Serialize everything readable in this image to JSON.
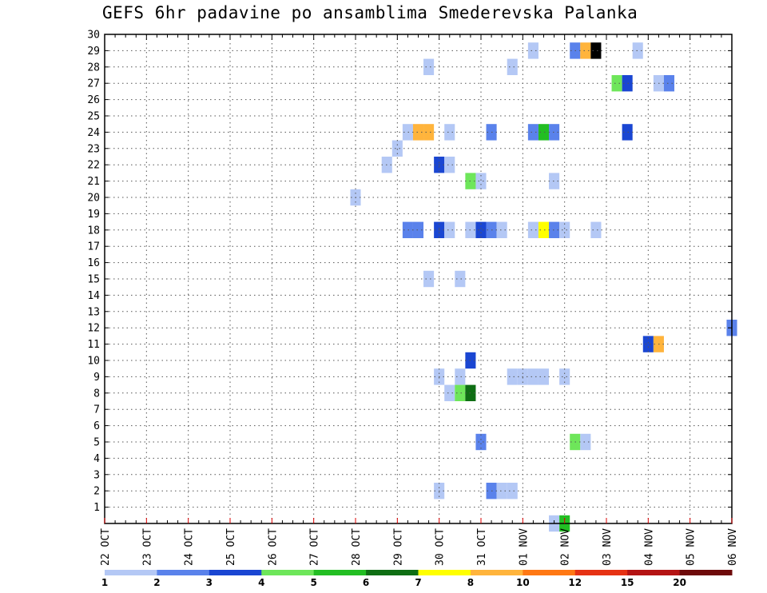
{
  "chart_data": {
    "type": "heatmap",
    "title": "GEFS 6hr padavine po ansamblima Smederevska Palanka",
    "x_tick_labels": [
      "22 OCT",
      "23 OCT",
      "24 OCT",
      "25 OCT",
      "26 OCT",
      "27 OCT",
      "28 OCT",
      "29 OCT",
      "30 OCT",
      "31 OCT",
      "01 NOV",
      "02 NOV",
      "03 NOV",
      "04 NOV",
      "05 NOV",
      "06 NOV"
    ],
    "y_tick_labels": [
      "1",
      "2",
      "3",
      "4",
      "5",
      "6",
      "7",
      "8",
      "9",
      "10",
      "11",
      "12",
      "13",
      "14",
      "15",
      "16",
      "17",
      "18",
      "19",
      "20",
      "21",
      "22",
      "23",
      "24",
      "25",
      "26",
      "27",
      "28",
      "29",
      "30"
    ],
    "x_range_days": [
      0,
      15
    ],
    "y_range_members": [
      0,
      30
    ],
    "x_step_days": 0.25,
    "grid": true,
    "colorbar": {
      "colors": [
        "#b4c8f5",
        "#5a82eb",
        "#1a46d2",
        "#6ee65a",
        "#23be23",
        "#0f6e14",
        "#ffff00",
        "#ffb43c",
        "#ff7814",
        "#e63214",
        "#b41414",
        "#6e0a0a"
      ],
      "labels": [
        "1",
        "2",
        "3",
        "4",
        "5",
        "6",
        "7",
        "8",
        "10",
        "12",
        "15",
        "20"
      ]
    },
    "cells": [
      {
        "d": 10.25,
        "m": 29,
        "v": 1
      },
      {
        "d": 11.25,
        "m": 29,
        "v": 2
      },
      {
        "d": 11.5,
        "m": 29,
        "v": 8
      },
      {
        "d": 11.75,
        "m": 29,
        "v": 15
      },
      {
        "d": 12.75,
        "m": 29,
        "v": 1
      },
      {
        "d": 7.75,
        "m": 28,
        "v": 1
      },
      {
        "d": 9.75,
        "m": 28,
        "v": 1
      },
      {
        "d": 12.25,
        "m": 27,
        "v": 4
      },
      {
        "d": 12.5,
        "m": 27,
        "v": 3
      },
      {
        "d": 13.25,
        "m": 27,
        "v": 1
      },
      {
        "d": 13.5,
        "m": 27,
        "v": 2
      },
      {
        "d": 7.25,
        "m": 24,
        "v": 1
      },
      {
        "d": 7.5,
        "m": 24,
        "v": 8
      },
      {
        "d": 7.75,
        "m": 24,
        "v": 8
      },
      {
        "d": 8.25,
        "m": 24,
        "v": 1
      },
      {
        "d": 9.25,
        "m": 24,
        "v": 2
      },
      {
        "d": 10.25,
        "m": 24,
        "v": 2
      },
      {
        "d": 10.5,
        "m": 24,
        "v": 5
      },
      {
        "d": 10.75,
        "m": 24,
        "v": 2
      },
      {
        "d": 12.5,
        "m": 24,
        "v": 3
      },
      {
        "d": 7.0,
        "m": 23,
        "v": 1
      },
      {
        "d": 6.75,
        "m": 22,
        "v": 1
      },
      {
        "d": 8.0,
        "m": 22,
        "v": 3
      },
      {
        "d": 8.25,
        "m": 22,
        "v": 1
      },
      {
        "d": 8.75,
        "m": 21,
        "v": 4
      },
      {
        "d": 9.0,
        "m": 21,
        "v": 1
      },
      {
        "d": 10.75,
        "m": 21,
        "v": 1
      },
      {
        "d": 6.0,
        "m": 20,
        "v": 1
      },
      {
        "d": 7.25,
        "m": 18,
        "v": 2
      },
      {
        "d": 7.5,
        "m": 18,
        "v": 2
      },
      {
        "d": 8.0,
        "m": 18,
        "v": 3
      },
      {
        "d": 8.25,
        "m": 18,
        "v": 1
      },
      {
        "d": 8.75,
        "m": 18,
        "v": 1
      },
      {
        "d": 9.0,
        "m": 18,
        "v": 3
      },
      {
        "d": 9.25,
        "m": 18,
        "v": 2
      },
      {
        "d": 9.5,
        "m": 18,
        "v": 1
      },
      {
        "d": 10.25,
        "m": 18,
        "v": 1
      },
      {
        "d": 10.5,
        "m": 18,
        "v": 7
      },
      {
        "d": 10.75,
        "m": 18,
        "v": 2
      },
      {
        "d": 11.0,
        "m": 18,
        "v": 1
      },
      {
        "d": 11.75,
        "m": 18,
        "v": 1
      },
      {
        "d": 7.75,
        "m": 15,
        "v": 1
      },
      {
        "d": 8.5,
        "m": 15,
        "v": 1
      },
      {
        "d": 15.0,
        "m": 12,
        "v": 2
      },
      {
        "d": 13.0,
        "m": 11,
        "v": 3
      },
      {
        "d": 13.25,
        "m": 11,
        "v": 8
      },
      {
        "d": 8.75,
        "m": 10,
        "v": 3
      },
      {
        "d": 8.0,
        "m": 9,
        "v": 1
      },
      {
        "d": 8.5,
        "m": 9,
        "v": 1
      },
      {
        "d": 9.75,
        "m": 9,
        "v": 1
      },
      {
        "d": 10.0,
        "m": 9,
        "v": 1
      },
      {
        "d": 10.25,
        "m": 9,
        "v": 1
      },
      {
        "d": 10.5,
        "m": 9,
        "v": 1
      },
      {
        "d": 11.0,
        "m": 9,
        "v": 1
      },
      {
        "d": 8.25,
        "m": 8,
        "v": 1
      },
      {
        "d": 8.5,
        "m": 8,
        "v": 4
      },
      {
        "d": 8.75,
        "m": 8,
        "v": 6
      },
      {
        "d": 9.0,
        "m": 5,
        "v": 2
      },
      {
        "d": 11.25,
        "m": 5,
        "v": 4
      },
      {
        "d": 11.5,
        "m": 5,
        "v": 1
      },
      {
        "d": 8.0,
        "m": 2,
        "v": 1
      },
      {
        "d": 9.25,
        "m": 2,
        "v": 2
      },
      {
        "d": 9.5,
        "m": 2,
        "v": 1
      },
      {
        "d": 9.75,
        "m": 2,
        "v": 1
      },
      {
        "d": 10.75,
        "m": 0,
        "v": 1
      },
      {
        "d": 11.0,
        "m": 0,
        "v": 5
      }
    ]
  }
}
